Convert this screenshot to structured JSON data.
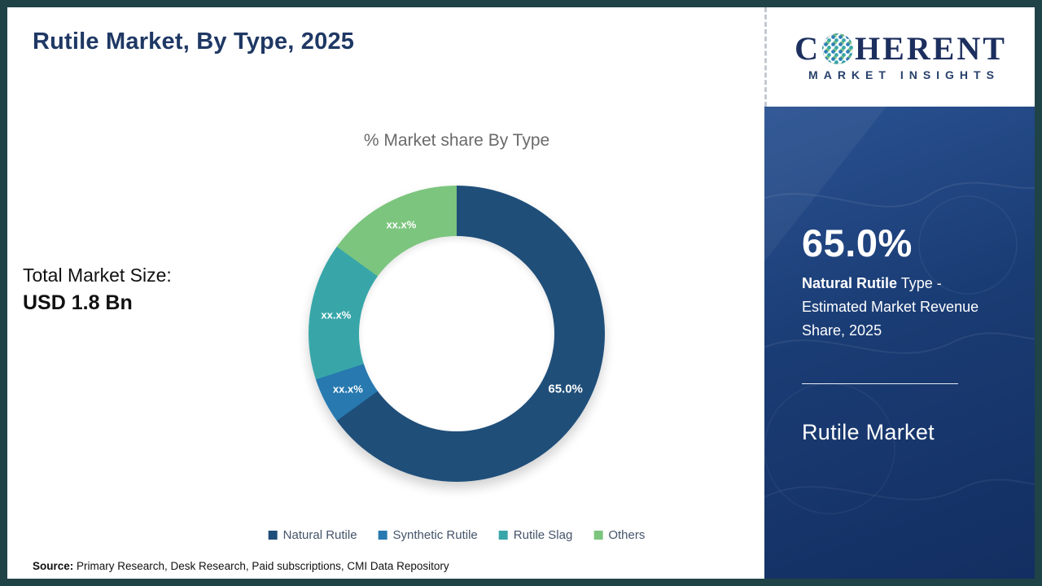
{
  "page": {
    "title": "Rutile Market, By Type, 2025",
    "total_market_label": "Total Market Size:",
    "total_market_value": "USD 1.8 Bn",
    "source_label": "Source:",
    "source_text": " Primary Research, Desk Research, Paid subscriptions, CMI Data Repository"
  },
  "logo": {
    "text_c": "C",
    "text_rest": "HERENT",
    "subtext": "MARKET INSIGHTS"
  },
  "sidebar": {
    "stat_value": "65.0%",
    "stat_bold": "Natural Rutile",
    "stat_rest": " Type - Estimated Market Revenue Share, 2025",
    "footer_title": "Rutile Market"
  },
  "chart_data": {
    "type": "pie",
    "donut": true,
    "donut_hole_ratio": 0.66,
    "title": "% Market share By Type",
    "start_angle_deg": 0,
    "direction": "clockwise",
    "legend_position": "bottom",
    "series": [
      {
        "name": "Natural Rutile",
        "value": 65.0,
        "label": "65.0%",
        "estimated": false,
        "color": "#1f4e79"
      },
      {
        "name": "Synthetic Rutile",
        "value": 5.0,
        "label": "xx.x%",
        "estimated": true,
        "color": "#2779b0"
      },
      {
        "name": "Rutile Slag",
        "value": 15.0,
        "label": "xx.x%",
        "estimated": true,
        "color": "#38a6a9"
      },
      {
        "name": "Others",
        "value": 15.0,
        "label": "xx.x%",
        "estimated": true,
        "color": "#7cc57e"
      }
    ]
  }
}
